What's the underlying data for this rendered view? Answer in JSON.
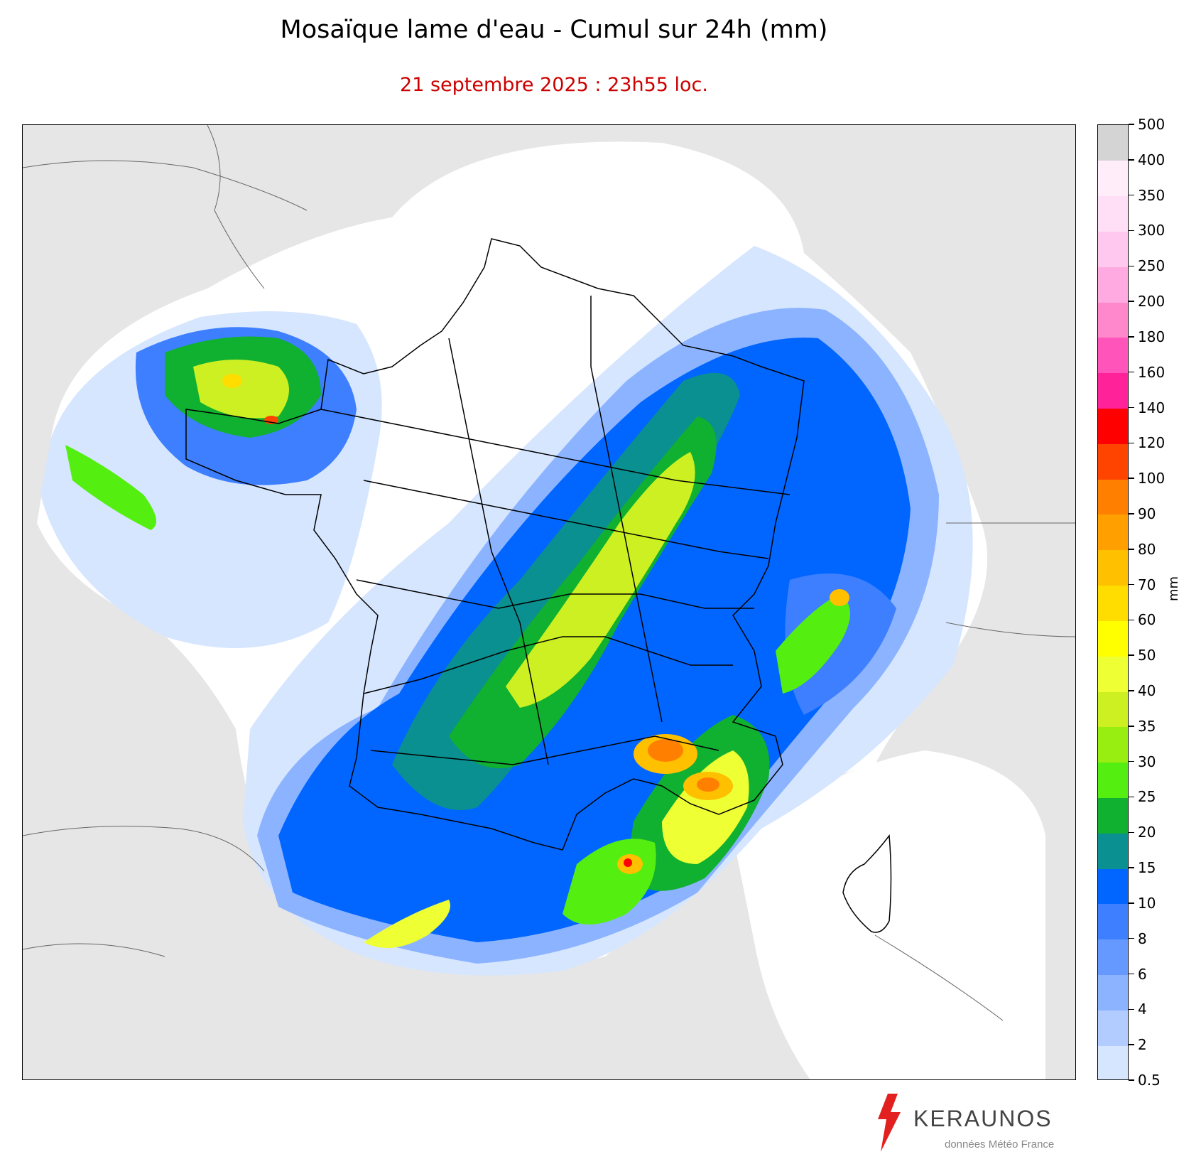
{
  "title": "Mosaïque lame d'eau - Cumul sur 24h (mm)",
  "subtitle": "21 septembre 2025 : 23h55 loc.",
  "colorbar": {
    "unit": "mm",
    "levels": [
      "0.5",
      "2",
      "4",
      "6",
      "8",
      "10",
      "15",
      "20",
      "25",
      "30",
      "35",
      "40",
      "50",
      "60",
      "70",
      "80",
      "90",
      "100",
      "120",
      "140",
      "160",
      "180",
      "200",
      "250",
      "300",
      "350",
      "400",
      "500"
    ],
    "colors": [
      "#d6e6ff",
      "#b3ccff",
      "#8cb3ff",
      "#6699ff",
      "#3d7fff",
      "#0066ff",
      "#0a9090",
      "#10b030",
      "#55ee11",
      "#99ee11",
      "#ccf022",
      "#eeff33",
      "#ffff00",
      "#ffdd00",
      "#ffc000",
      "#ffa000",
      "#ff8000",
      "#ff4400",
      "#ff0000",
      "#ff2299",
      "#ff55bb",
      "#ff88cc",
      "#ffaae0",
      "#ffc8ee",
      "#ffdff5",
      "#ffeefa",
      "#d4d4d4"
    ]
  },
  "logo": {
    "name": "KERAUNOS",
    "credit": "données Météo France"
  },
  "colors": {
    "land": "#e6e6e6",
    "radar_background": "#ffffff",
    "subtitle": "#cc0000"
  }
}
